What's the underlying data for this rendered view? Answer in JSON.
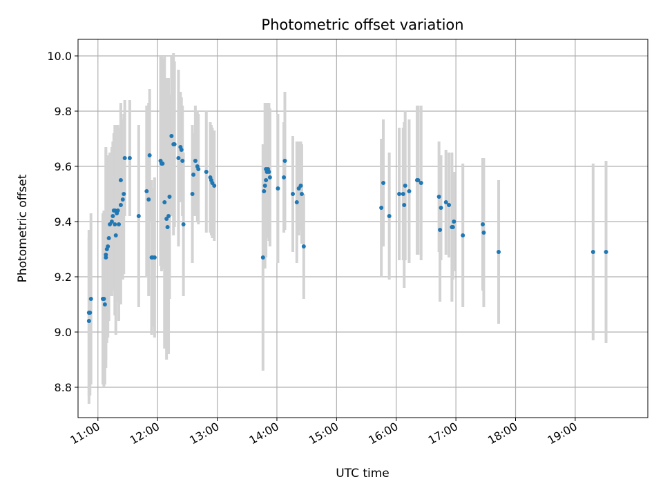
{
  "chart_data": {
    "type": "scatter",
    "title": "Photometric offset variation",
    "xlabel": "UTC time",
    "ylabel": "Photometric offset",
    "grid": true,
    "xlim": [
      "10:40",
      "20:13"
    ],
    "ylim": [
      8.69,
      10.06
    ],
    "x_ticks": [
      "11:00",
      "12:00",
      "13:00",
      "14:00",
      "15:00",
      "16:00",
      "17:00",
      "18:00",
      "19:00"
    ],
    "y_ticks": [
      "8.8",
      "9.0",
      "9.2",
      "9.4",
      "9.6",
      "9.8",
      "10.0"
    ],
    "colors": {
      "points": "#1f77b4",
      "errorbars": "#d3d3d3",
      "grid": "#b0b0b0"
    },
    "series": [
      {
        "x": [
          "10:51",
          "10:51",
          "10:52",
          "10:53",
          "11:05",
          "11:06",
          "11:07",
          "11:08",
          "11:08",
          "11:09",
          "11:10",
          "11:11",
          "11:12",
          "11:14",
          "11:15",
          "11:16",
          "11:17",
          "11:17",
          "11:18",
          "11:19",
          "11:20",
          "11:21",
          "11:23",
          "11:23",
          "11:25",
          "11:26",
          "11:27",
          "11:32",
          "11:41",
          "11:49",
          "11:51",
          "11:52",
          "11:54",
          "11:55",
          "11:57",
          "12:03",
          "12:04",
          "12:05",
          "12:07",
          "12:09",
          "12:10",
          "12:11",
          "12:12",
          "12:14",
          "12:16",
          "12:17",
          "12:21",
          "12:23",
          "12:24",
          "12:25",
          "12:26",
          "12:35",
          "12:36",
          "12:38",
          "12:40",
          "12:41",
          "12:49",
          "12:53",
          "12:54",
          "12:55",
          "12:57",
          "13:46",
          "13:47",
          "13:48",
          "13:49",
          "13:49",
          "13:50",
          "13:51",
          "13:52",
          "13:53",
          "14:01",
          "14:07",
          "14:08",
          "14:16",
          "14:20",
          "14:22",
          "14:24",
          "14:25",
          "14:27",
          "15:45",
          "15:47",
          "15:53",
          "16:03",
          "16:07",
          "16:08",
          "16:09",
          "16:13",
          "16:21",
          "16:22",
          "16:25",
          "16:43",
          "16:44",
          "16:45",
          "16:50",
          "16:53",
          "16:56",
          "16:57",
          "16:58",
          "17:07",
          "17:27",
          "17:28",
          "17:43",
          "19:18",
          "19:31"
        ],
        "y": [
          9.07,
          9.04,
          9.07,
          9.12,
          9.12,
          9.12,
          9.1,
          9.27,
          9.28,
          9.3,
          9.31,
          9.34,
          9.39,
          9.4,
          9.42,
          9.44,
          9.44,
          9.39,
          9.35,
          9.43,
          9.44,
          9.39,
          9.46,
          9.55,
          9.48,
          9.5,
          9.63,
          9.63,
          9.42,
          9.51,
          9.48,
          9.64,
          9.27,
          9.27,
          9.27,
          9.62,
          9.61,
          9.61,
          9.47,
          9.41,
          9.38,
          9.42,
          9.49,
          9.71,
          9.68,
          9.68,
          9.63,
          9.67,
          9.66,
          9.62,
          9.39,
          9.5,
          9.57,
          9.62,
          9.6,
          9.59,
          9.58,
          9.56,
          9.55,
          9.54,
          9.53,
          9.27,
          9.51,
          9.53,
          9.55,
          9.59,
          9.58,
          9.59,
          9.58,
          9.56,
          9.52,
          9.56,
          9.62,
          9.5,
          9.47,
          9.52,
          9.53,
          9.5,
          9.31,
          9.45,
          9.54,
          9.42,
          9.5,
          9.5,
          9.46,
          9.53,
          9.51,
          9.55,
          9.55,
          9.54,
          9.49,
          9.37,
          9.45,
          9.47,
          9.46,
          9.38,
          9.38,
          9.4,
          9.35,
          9.39,
          9.36,
          9.29,
          9.29,
          9.29
        ],
        "err": [
          0.3,
          0.3,
          0.3,
          0.31,
          0.31,
          0.32,
          0.29,
          0.4,
          0.38,
          0.34,
          0.33,
          0.3,
          0.26,
          0.27,
          0.27,
          0.28,
          0.31,
          0.33,
          0.36,
          0.32,
          0.31,
          0.35,
          0.36,
          0.28,
          0.29,
          0.29,
          0.21,
          0.21,
          0.33,
          0.31,
          0.35,
          0.24,
          0.28,
          0.25,
          0.29,
          0.38,
          0.39,
          0.38,
          0.53,
          0.51,
          0.38,
          0.5,
          0.37,
          0.29,
          0.33,
          0.3,
          0.32,
          0.2,
          0.19,
          0.2,
          0.26,
          0.25,
          0.15,
          0.2,
          0.2,
          0.2,
          0.22,
          0.2,
          0.2,
          0.2,
          0.2,
          0.41,
          0.17,
          0.3,
          0.28,
          0.24,
          0.24,
          0.24,
          0.25,
          0.25,
          0.27,
          0.2,
          0.25,
          0.21,
          0.22,
          0.17,
          0.16,
          0.18,
          0.19,
          0.25,
          0.23,
          0.23,
          0.24,
          0.24,
          0.3,
          0.27,
          0.26,
          0.27,
          0.27,
          0.28,
          0.2,
          0.26,
          0.19,
          0.19,
          0.19,
          0.27,
          0.19,
          0.18,
          0.26,
          0.24,
          0.27,
          0.26,
          0.32,
          0.33
        ]
      }
    ]
  }
}
